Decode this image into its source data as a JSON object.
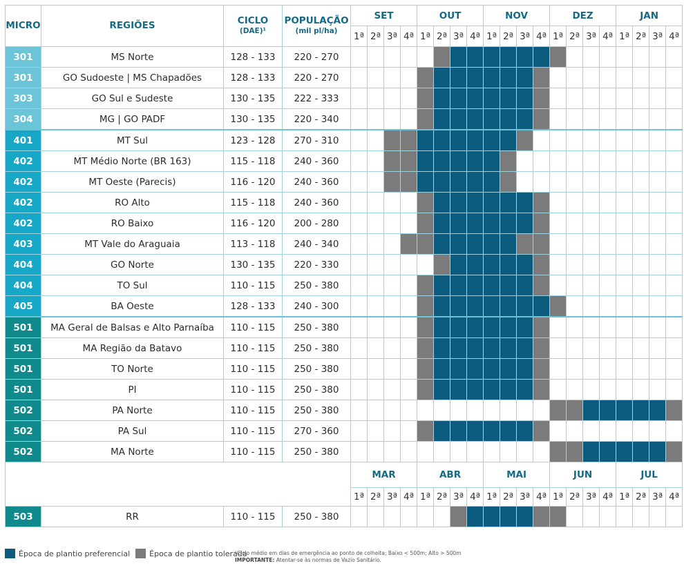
{
  "headers": {
    "micro": "MICRO",
    "regioes": "REGIÕES",
    "ciclo": "CICLO",
    "ciclo_sub": "(DAE)¹",
    "populacao": "POPULAÇÃO",
    "populacao_sub": "(mil pl/ha)"
  },
  "months_top": [
    "SET",
    "OUT",
    "NOV",
    "DEZ",
    "JAN"
  ],
  "months_bottom": [
    "MAR",
    "ABR",
    "MAI",
    "JUN",
    "JUL"
  ],
  "weeks": [
    "1ª",
    "2ª",
    "3ª",
    "4ª"
  ],
  "colors": {
    "preferencial": "#0d5c80",
    "tolerada": "#7b7b7b",
    "micro_300": "#6cc4d8",
    "micro_400": "#17a7c7",
    "micro_500": "#108a8d",
    "grid": "#9fd3df",
    "header_text": "#146a86"
  },
  "rows": [
    {
      "micro": "301",
      "regiao": "MS Norte",
      "ciclo": "128 - 133",
      "pop": "220 - 270",
      "weeks": "0000 0TPP PPPP T000 0000"
    },
    {
      "micro": "301",
      "regiao": "GO Sudoeste | MS Chapadões",
      "ciclo": "128 - 133",
      "pop": "220 - 270",
      "weeks": "0000 TPPP PPPT 0000 0000"
    },
    {
      "micro": "303",
      "regiao": "GO Sul e Sudeste",
      "ciclo": "130 - 135",
      "pop": "222 - 333",
      "weeks": "0000 TPPP PPPT 0000 0000"
    },
    {
      "micro": "304",
      "regiao": "MG | GO PADF",
      "ciclo": "130 - 135",
      "pop": "220 - 340",
      "weeks": "0000 TPPP PPPT 0000 0000"
    },
    {
      "micro": "401",
      "regiao": "MT Sul",
      "ciclo": "123 - 128",
      "pop": "270 - 310",
      "weeks": "00TT PPPP PPT0 0000 0000"
    },
    {
      "micro": "402",
      "regiao": "MT Médio Norte (BR 163)",
      "ciclo": "115 - 118",
      "pop": "240 - 360",
      "weeks": "00TT PPPP PT00 0000 0000"
    },
    {
      "micro": "402",
      "regiao": "MT Oeste (Parecis)",
      "ciclo": "116 - 120",
      "pop": "240 - 360",
      "weeks": "00TT PPPP PT00 0000 0000"
    },
    {
      "micro": "402",
      "regiao": "RO Alto",
      "ciclo": "115 - 118",
      "pop": "240 - 360",
      "weeks": "0000 TPPP PPPT 0000 0000"
    },
    {
      "micro": "402",
      "regiao": "RO Baixo",
      "ciclo": "116 - 120",
      "pop": "200 - 280",
      "weeks": "0000 TPPP PPPT 0000 0000"
    },
    {
      "micro": "403",
      "regiao": "MT Vale do Araguaia",
      "ciclo": "113 - 118",
      "pop": "240 - 340",
      "weeks": "000T TPPP PPTT 0000 0000"
    },
    {
      "micro": "404",
      "regiao": "GO Norte",
      "ciclo": "130 - 135",
      "pop": "220 - 330",
      "weeks": "0000 0TPP PPPT 0000 0000"
    },
    {
      "micro": "404",
      "regiao": "TO Sul",
      "ciclo": "110 - 115",
      "pop": "250 - 380",
      "weeks": "0000 TPPP PPPT 0000 0000"
    },
    {
      "micro": "405",
      "regiao": "BA Oeste",
      "ciclo": "128 - 133",
      "pop": "240 - 300",
      "weeks": "0000 TPPP PPPP T000 0000"
    },
    {
      "micro": "501",
      "regiao": "MA Geral de Balsas e Alto Parnaíba",
      "ciclo": "110 - 115",
      "pop": "250 - 380",
      "weeks": "0000 TPPP PPPT 0000 0000"
    },
    {
      "micro": "501",
      "regiao": "MA Região da Batavo",
      "ciclo": "110 - 115",
      "pop": "250 - 380",
      "weeks": "0000 TPPP PPPT 0000 0000"
    },
    {
      "micro": "501",
      "regiao": "TO Norte",
      "ciclo": "110 - 115",
      "pop": "250 - 380",
      "weeks": "0000 TPPP PPPT 0000 0000"
    },
    {
      "micro": "501",
      "regiao": "PI",
      "ciclo": "110 - 115",
      "pop": "250 - 380",
      "weeks": "0000 TPPP PPPT 0000 0000"
    },
    {
      "micro": "502",
      "regiao": "PA Norte",
      "ciclo": "110 - 115",
      "pop": "250 - 380",
      "weeks": "0000 0000 0000 TTPP PPPT"
    },
    {
      "micro": "502",
      "regiao": "PA Sul",
      "ciclo": "110 - 115",
      "pop": "270 - 360",
      "weeks": "0000 TPPP PPPT 0000 0000"
    },
    {
      "micro": "502",
      "regiao": "MA Norte",
      "ciclo": "110 - 115",
      "pop": "250 - 380",
      "weeks": "0000 0000 0000 TTPP PPPT"
    }
  ],
  "row_rr": {
    "micro": "503",
    "regiao": "RR",
    "ciclo": "110 - 115",
    "pop": "250 - 380",
    "weeks": "0000 00TP PPPT T000 0000"
  },
  "legend": {
    "preferencial": "Época de plantio preferencial",
    "tolerada": "Época de plantio tolerada"
  },
  "footnote": {
    "ciclo": "¹Ciclo médio em dias de emergência ao ponto de colheita; Baixo < 500m; Alto > 500m",
    "importante_label": "IMPORTANTE:",
    "importante_text": " Atentar-se às normas de Vazio Sanitário."
  }
}
